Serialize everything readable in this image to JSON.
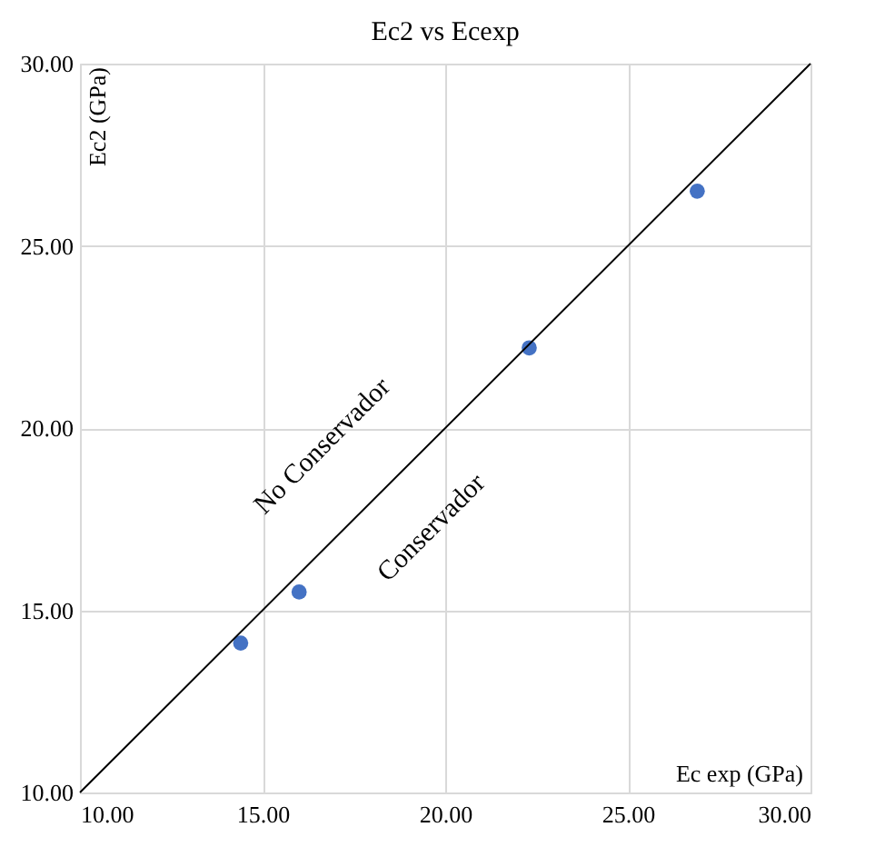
{
  "chart_data": {
    "type": "scatter",
    "title": "Ec2 vs Ecexp",
    "xlabel": "Ec exp (GPa)",
    "ylabel": "Ec2 (GPa)",
    "xlim": [
      10,
      30
    ],
    "ylim": [
      10,
      30
    ],
    "xticks": [
      {
        "value": 10,
        "label": "10.00"
      },
      {
        "value": 15,
        "label": "15.00"
      },
      {
        "value": 20,
        "label": "20.00"
      },
      {
        "value": 25,
        "label": "25.00"
      },
      {
        "value": 30,
        "label": "30.00"
      }
    ],
    "yticks": [
      {
        "value": 10,
        "label": "10.00"
      },
      {
        "value": 15,
        "label": "15.00"
      },
      {
        "value": 20,
        "label": "20.00"
      },
      {
        "value": 25,
        "label": "25.00"
      },
      {
        "value": 30,
        "label": "30.00"
      }
    ],
    "grid": true,
    "series": [
      {
        "marker": "circle",
        "color": "#4472c4",
        "x": [
          14.4,
          16.0,
          22.3,
          26.9
        ],
        "values": [
          14.1,
          15.5,
          22.2,
          26.5
        ]
      },
      {
        "type": "line",
        "marker": "none",
        "color": "#000000",
        "x": [
          10,
          30
        ],
        "values": [
          10,
          30
        ]
      }
    ],
    "annotations": [
      "No Conservador",
      "Conservador"
    ]
  }
}
